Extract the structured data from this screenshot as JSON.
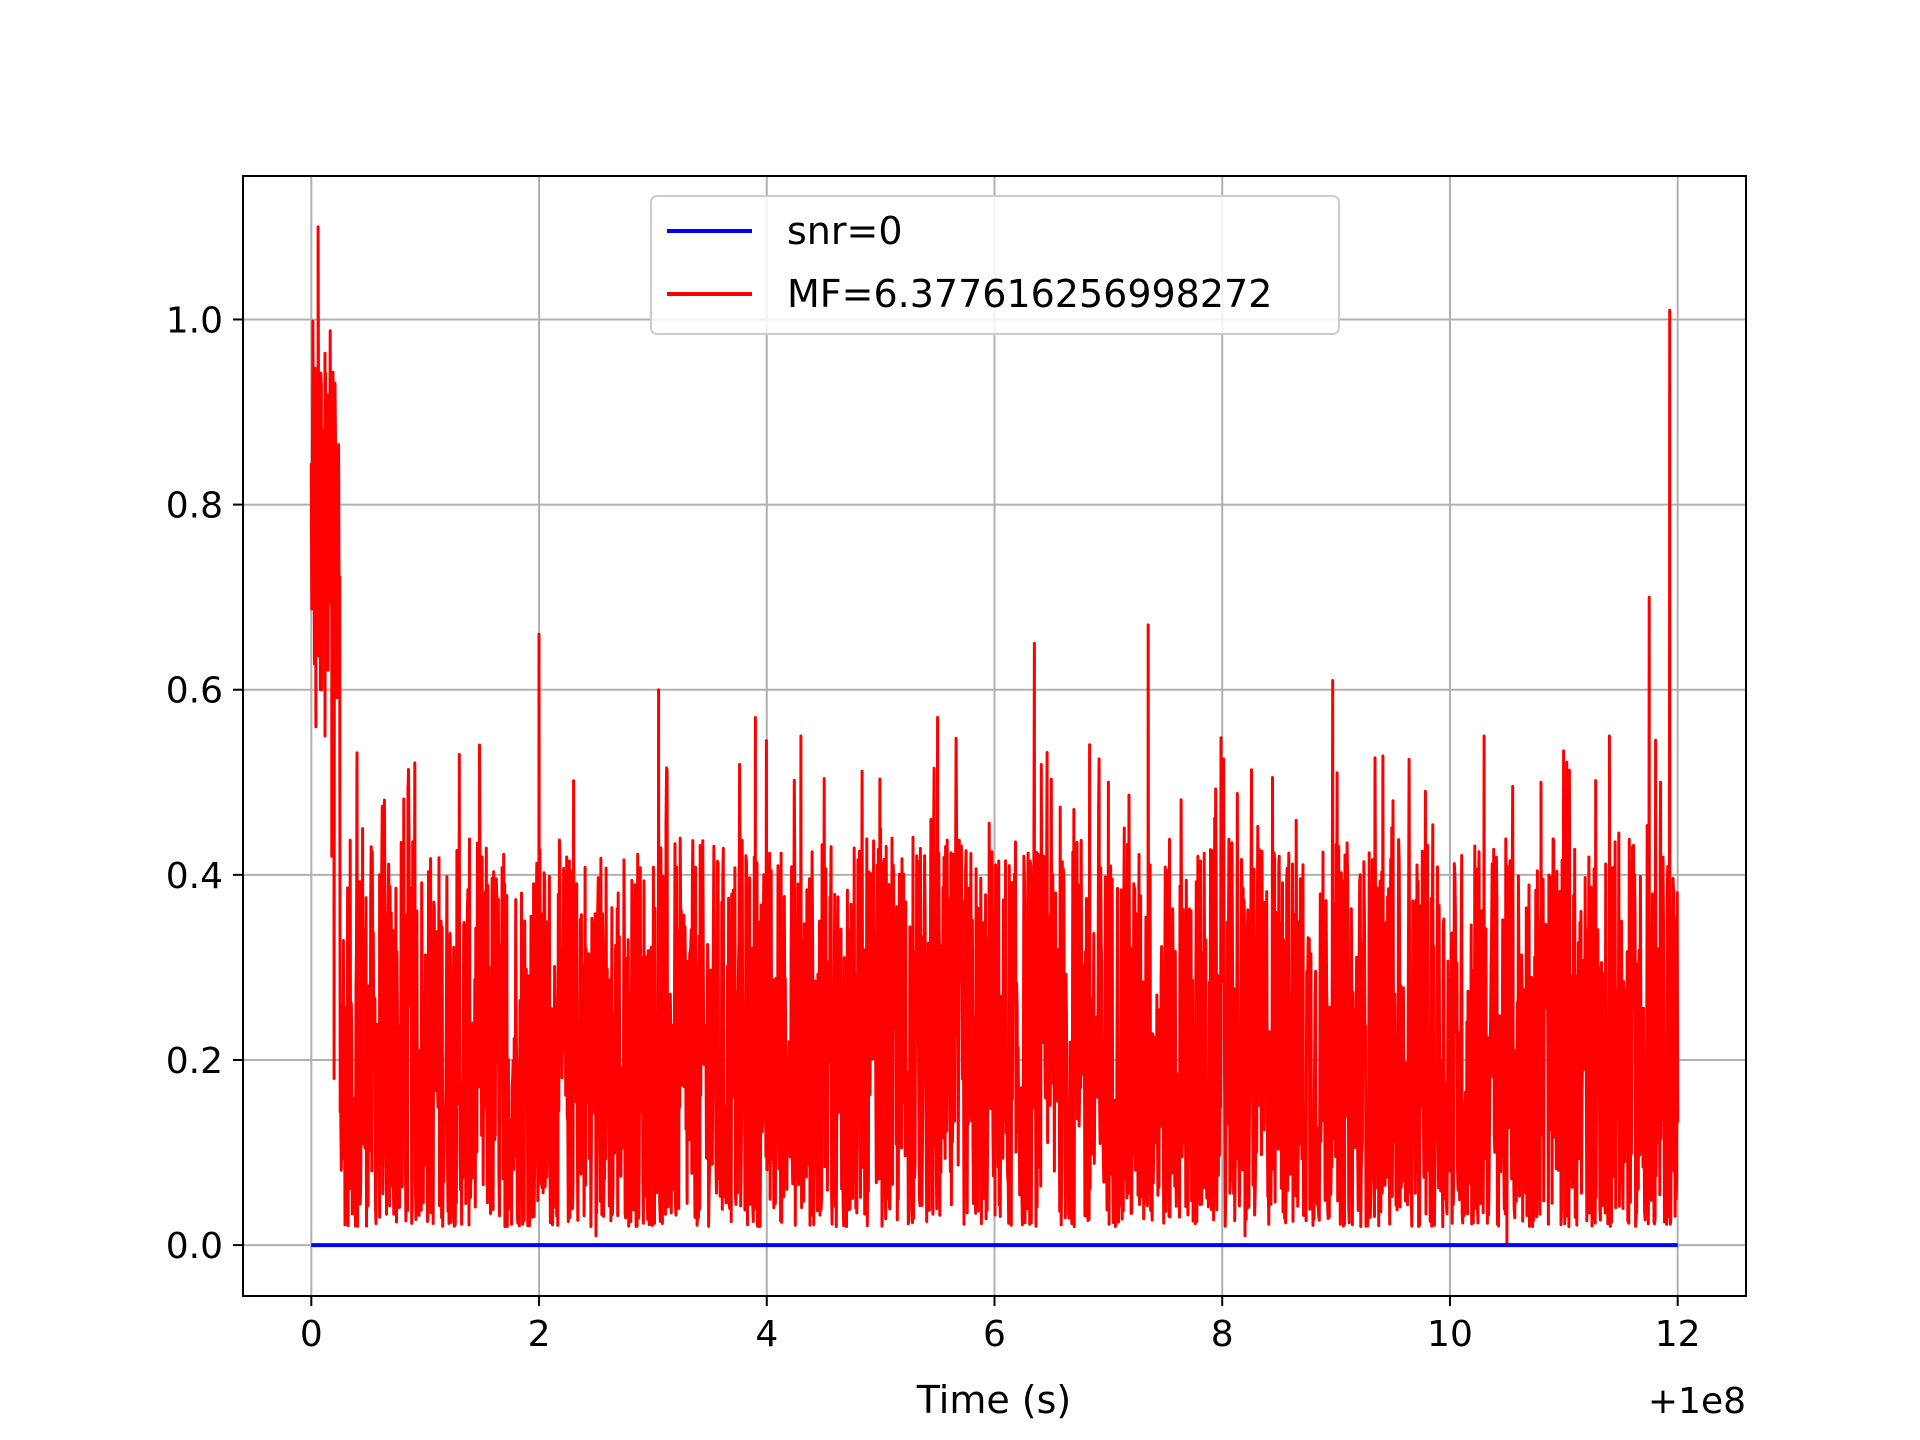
{
  "chart_data": {
    "type": "line",
    "xlabel": "Time (s)",
    "ylabel": "",
    "x_offset_label": "+1e8",
    "xlim": [
      -0.6,
      12.6
    ],
    "ylim": [
      -0.055,
      1.155
    ],
    "x_ticks": [
      0,
      2,
      4,
      6,
      8,
      10,
      12
    ],
    "x_tick_labels": [
      "0",
      "2",
      "4",
      "6",
      "8",
      "10",
      "12"
    ],
    "y_ticks": [
      0.0,
      0.2,
      0.4,
      0.6,
      0.8,
      1.0
    ],
    "y_tick_labels": [
      "0.0",
      "0.2",
      "0.4",
      "0.6",
      "0.8",
      "1.0"
    ],
    "grid": true,
    "legend": "upper-center",
    "series": [
      {
        "name": "snr=0",
        "color": "#0000ff",
        "x": [
          0,
          12
        ],
        "values": [
          0,
          0
        ]
      },
      {
        "name": "MF=6.377616256998272",
        "color": "#ff0000",
        "x": [
          0,
          0.02,
          0.04,
          0.06,
          0.08,
          0.1,
          0.12,
          0.15,
          0.18,
          0.2,
          0.25,
          0.3,
          0.45,
          0.6,
          0.85,
          1.0,
          1.3,
          1.7,
          2.0,
          2.2,
          2.5,
          3.05,
          3.4,
          3.9,
          4.0,
          4.3,
          4.7,
          5.0,
          5.5,
          5.9,
          6.35,
          6.7,
          7.0,
          7.35,
          7.7,
          8.0,
          8.2,
          8.5,
          8.97,
          9.3,
          9.5,
          10.0,
          10.3,
          10.5,
          10.8,
          11.1,
          11.4,
          11.65,
          11.75,
          11.85,
          11.93,
          12.0
        ],
        "values": [
          0.82,
          0.94,
          0.56,
          1.1,
          0.6,
          0.88,
          0.55,
          0.85,
          0.42,
          0.18,
          0.55,
          0.05,
          0.45,
          0.03,
          0.49,
          0.15,
          0.53,
          0.02,
          0.66,
          0.25,
          0.01,
          0.6,
          0.03,
          0.57,
          0.1,
          0.55,
          0.02,
          0.45,
          0.57,
          0.05,
          0.65,
          0.02,
          0.5,
          0.67,
          0.04,
          0.5,
          0.01,
          0.42,
          0.61,
          0.03,
          0.48,
          0.08,
          0.55,
          0.0,
          0.5,
          0.03,
          0.55,
          0.06,
          0.7,
          0.5,
          1.01,
          0.15
        ]
      }
    ]
  }
}
